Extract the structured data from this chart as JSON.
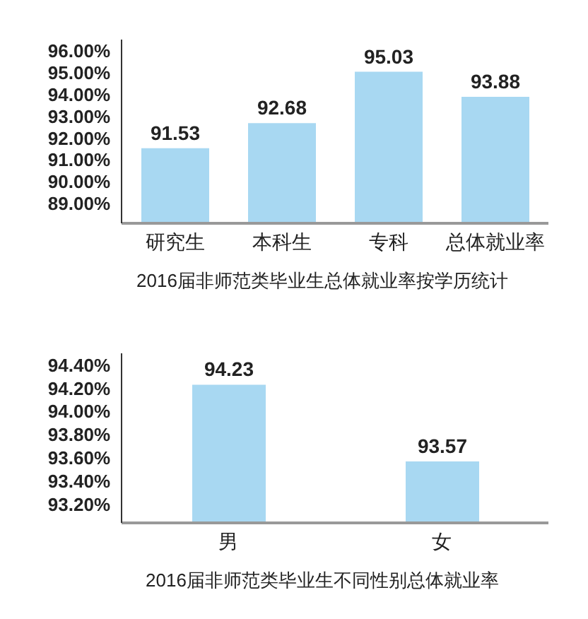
{
  "chart_data": [
    {
      "type": "bar",
      "title": "2016届非师范类毕业生总体就业率按学历统计",
      "categories": [
        "研究生",
        "本科生",
        "专科",
        "总体就业率"
      ],
      "values": [
        91.53,
        92.68,
        95.03,
        93.88
      ],
      "color": "#a8d8f2",
      "data_labels": true,
      "ylim": [
        88.1,
        96.5
      ],
      "yticks": [
        {
          "value": 89,
          "label": "89.00%"
        },
        {
          "value": 90,
          "label": "90.00%"
        },
        {
          "value": 91,
          "label": "91.00%"
        },
        {
          "value": 92,
          "label": "92.00%"
        },
        {
          "value": 93,
          "label": "93.00%"
        },
        {
          "value": 94,
          "label": "94.00%"
        },
        {
          "value": 95,
          "label": "95.00%"
        },
        {
          "value": 96,
          "label": "96.00%"
        }
      ],
      "grid": false,
      "legend": false
    },
    {
      "type": "bar",
      "title": "2016届非师范类毕业生不同性别总体就业率",
      "categories": [
        "男",
        "女"
      ],
      "values": [
        94.23,
        93.57
      ],
      "color": "#a8d8f2",
      "data_labels": true,
      "ylim": [
        93.04,
        94.5
      ],
      "yticks": [
        {
          "value": 93.2,
          "label": "93.20%"
        },
        {
          "value": 93.4,
          "label": "93.40%"
        },
        {
          "value": 93.6,
          "label": "93.60%"
        },
        {
          "value": 93.8,
          "label": "93.80%"
        },
        {
          "value": 94,
          "label": "94.00%"
        },
        {
          "value": 94.2,
          "label": "94.20%"
        },
        {
          "value": 94.4,
          "label": "94.40%"
        }
      ],
      "grid": false,
      "legend": false
    }
  ]
}
